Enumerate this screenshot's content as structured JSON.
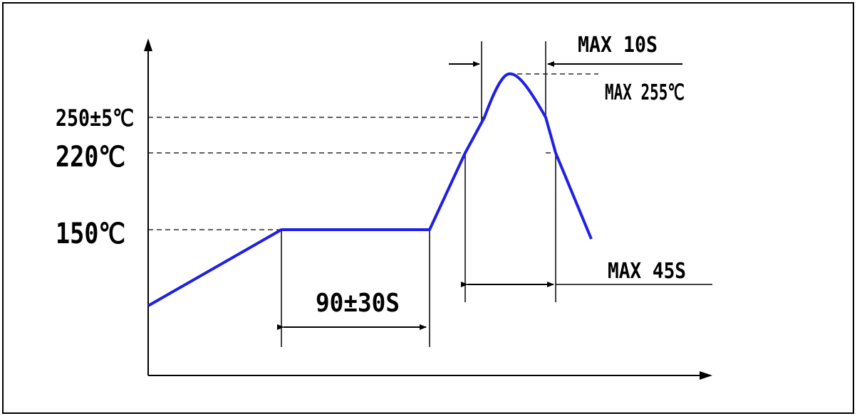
{
  "diagram": {
    "temperature_labels": {
      "t250": "250±5℃",
      "t220": "220℃",
      "t150": "150℃"
    },
    "peak_label": "MAX 255℃",
    "time_labels": {
      "soak": "90±30S",
      "peak_window": "MAX 10S",
      "above_liquidus": "MAX 45S"
    },
    "colors": {
      "profile": "#1f1fe6",
      "lines": "#000000"
    }
  }
}
